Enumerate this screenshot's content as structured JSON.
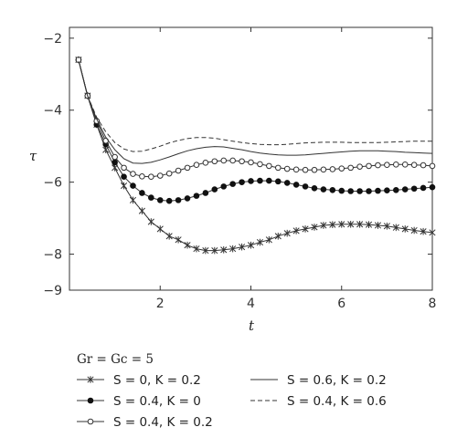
{
  "chart_data": {
    "type": "line",
    "xlabel": "t",
    "ylabel": "τ",
    "xlim": [
      0,
      8
    ],
    "ylim": [
      -9,
      -1.7
    ],
    "x_ticks": [
      "2",
      "4",
      "6",
      "8"
    ],
    "y_ticks": [
      "−2",
      "−4",
      "−6",
      "−8",
      "−9"
    ],
    "legend_title": "Gr = Gc = 5",
    "grid": false,
    "legend_position": "below",
    "x": [
      0.2,
      0.4,
      0.6,
      0.8,
      1.0,
      1.2,
      1.4,
      1.6,
      1.8,
      2.0,
      2.2,
      2.4,
      2.6,
      2.8,
      3.0,
      3.2,
      3.4,
      3.6,
      3.8,
      4.0,
      4.2,
      4.4,
      4.6,
      4.8,
      5.0,
      5.2,
      5.4,
      5.6,
      5.8,
      6.0,
      6.2,
      6.4,
      6.6,
      6.8,
      7.0,
      7.2,
      7.4,
      7.6,
      7.8,
      8.0
    ],
    "series": [
      {
        "name": "S = 0, K = 0.2",
        "style": "line-star",
        "values": [
          -2.6,
          -3.6,
          -4.4,
          -5.1,
          -5.6,
          -6.1,
          -6.5,
          -6.8,
          -7.1,
          -7.3,
          -7.5,
          -7.6,
          -7.75,
          -7.85,
          -7.9,
          -7.9,
          -7.88,
          -7.85,
          -7.8,
          -7.75,
          -7.67,
          -7.6,
          -7.5,
          -7.42,
          -7.35,
          -7.3,
          -7.25,
          -7.2,
          -7.18,
          -7.17,
          -7.17,
          -7.17,
          -7.18,
          -7.2,
          -7.22,
          -7.26,
          -7.3,
          -7.34,
          -7.37,
          -7.4
        ]
      },
      {
        "name": "S = 0.4, K = 0",
        "style": "line-filled-circle",
        "values": [
          -2.6,
          -3.6,
          -4.4,
          -4.95,
          -5.45,
          -5.85,
          -6.1,
          -6.3,
          -6.43,
          -6.5,
          -6.52,
          -6.5,
          -6.45,
          -6.38,
          -6.3,
          -6.2,
          -6.12,
          -6.05,
          -6.0,
          -5.97,
          -5.96,
          -5.96,
          -5.98,
          -6.02,
          -6.07,
          -6.12,
          -6.17,
          -6.2,
          -6.22,
          -6.24,
          -6.25,
          -6.25,
          -6.25,
          -6.24,
          -6.23,
          -6.22,
          -6.2,
          -6.18,
          -6.16,
          -6.14
        ]
      },
      {
        "name": "S = 0.4, K = 0.2",
        "style": "line-open-circle",
        "values": [
          -2.6,
          -3.6,
          -4.3,
          -4.85,
          -5.3,
          -5.6,
          -5.77,
          -5.84,
          -5.85,
          -5.82,
          -5.76,
          -5.68,
          -5.6,
          -5.52,
          -5.46,
          -5.42,
          -5.4,
          -5.4,
          -5.42,
          -5.45,
          -5.5,
          -5.55,
          -5.6,
          -5.63,
          -5.65,
          -5.66,
          -5.66,
          -5.65,
          -5.64,
          -5.62,
          -5.6,
          -5.57,
          -5.55,
          -5.53,
          -5.52,
          -5.51,
          -5.51,
          -5.52,
          -5.53,
          -5.55
        ]
      },
      {
        "name": "S = 0.6, K = 0.2",
        "style": "solid",
        "values": [
          -2.6,
          -3.6,
          -4.25,
          -4.75,
          -5.1,
          -5.35,
          -5.47,
          -5.48,
          -5.45,
          -5.38,
          -5.3,
          -5.21,
          -5.13,
          -5.07,
          -5.03,
          -5.01,
          -5.02,
          -5.06,
          -5.1,
          -5.15,
          -5.19,
          -5.22,
          -5.24,
          -5.25,
          -5.25,
          -5.24,
          -5.22,
          -5.2,
          -5.18,
          -5.16,
          -5.14,
          -5.13,
          -5.13,
          -5.13,
          -5.14,
          -5.15,
          -5.17,
          -5.18,
          -5.19,
          -5.2
        ]
      },
      {
        "name": "S = 0.4, K = 0.6",
        "style": "dashed",
        "values": [
          -2.6,
          -3.6,
          -4.2,
          -4.6,
          -4.9,
          -5.08,
          -5.15,
          -5.14,
          -5.08,
          -5.0,
          -4.91,
          -4.84,
          -4.79,
          -4.76,
          -4.76,
          -4.78,
          -4.82,
          -4.86,
          -4.9,
          -4.93,
          -4.95,
          -4.96,
          -4.96,
          -4.95,
          -4.93,
          -4.91,
          -4.9,
          -4.89,
          -4.89,
          -4.89,
          -4.9,
          -4.9,
          -4.9,
          -4.9,
          -4.89,
          -4.88,
          -4.87,
          -4.86,
          -4.86,
          -4.86
        ]
      }
    ]
  }
}
